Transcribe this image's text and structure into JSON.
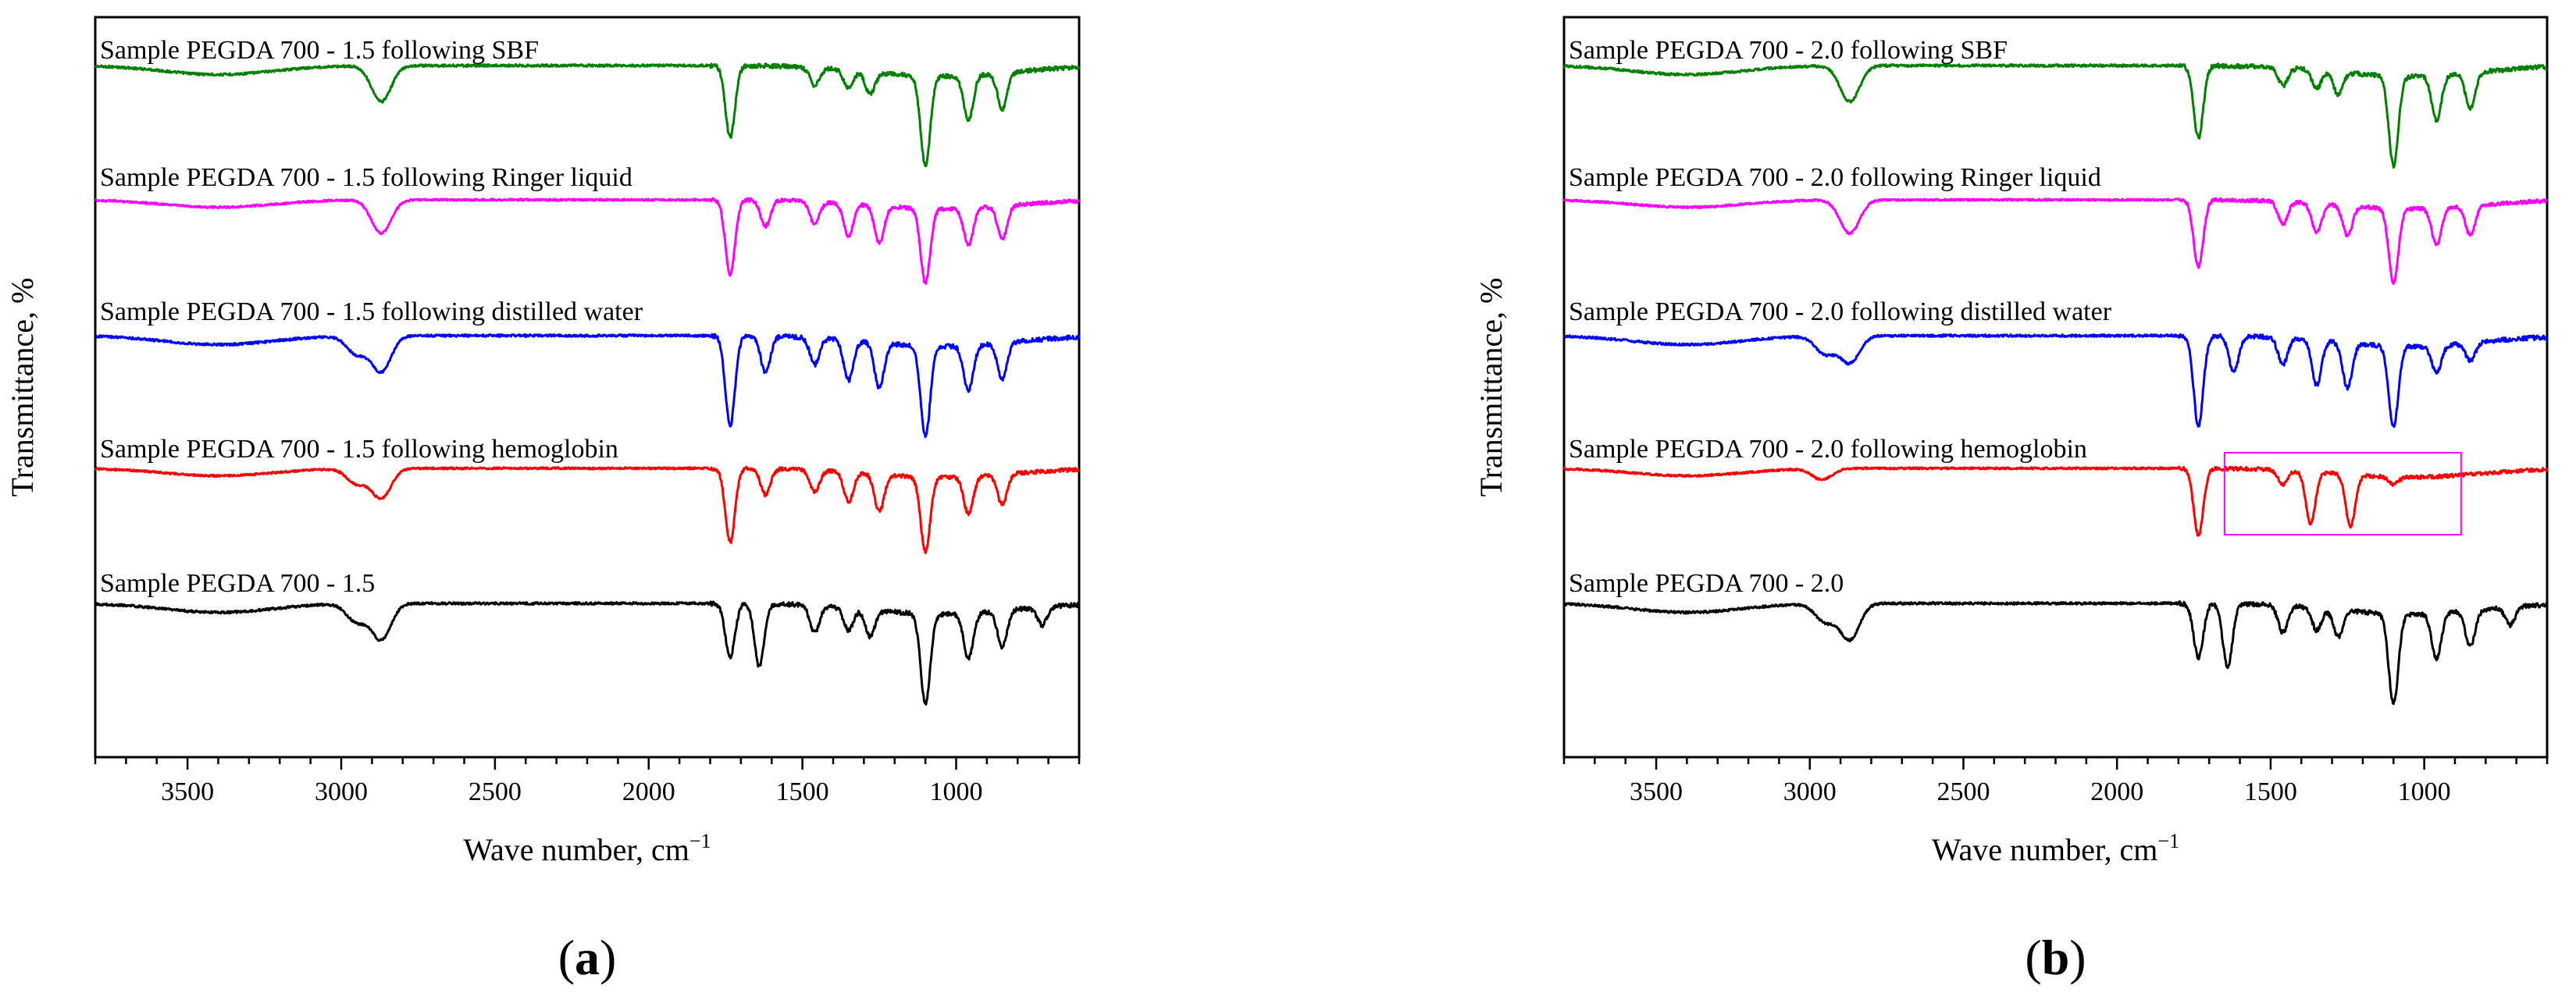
{
  "figure": {
    "x_axis_unit_base": "cm",
    "x_axis_unit_exp": "−1"
  },
  "chart_data": [
    {
      "type": "line",
      "panel": "a",
      "panel_label": {
        "open": "(",
        "letter": "a",
        "close": ")"
      },
      "xlabel": "Wave number, cm−1",
      "xlabel_text": "Wave number, ",
      "ylabel": "Transmittance, %",
      "xlim": [
        3800,
        600
      ],
      "x_reversed": true,
      "xticks": [
        3500,
        3000,
        2500,
        2000,
        1500,
        1000
      ],
      "yticks_shown": false,
      "grid": false,
      "legend": "inline labels above each curve",
      "series": [
        {
          "name": "Sample PEGDA 700 - 1.5 following SBF",
          "color": "#008000",
          "peaks": [
            [
              2870,
              0.4
            ],
            [
              1735,
              0.8
            ],
            [
              1460,
              0.2
            ],
            [
              1350,
              0.2
            ],
            [
              1280,
              0.25
            ],
            [
              1100,
              1.0
            ],
            [
              960,
              0.5
            ],
            [
              850,
              0.4
            ]
          ]
        },
        {
          "name": "Sample PEGDA 700 - 1.5 following Ringer liquid",
          "color": "#ff00ff",
          "peaks": [
            [
              2870,
              0.45
            ],
            [
              1735,
              1.0
            ],
            [
              1620,
              0.35
            ],
            [
              1460,
              0.3
            ],
            [
              1350,
              0.45
            ],
            [
              1250,
              0.5
            ],
            [
              1100,
              1.0
            ],
            [
              960,
              0.5
            ],
            [
              850,
              0.45
            ]
          ]
        },
        {
          "name": "Sample PEGDA 700 - 1.5 following distilled water",
          "color": "#0000ff",
          "peaks": [
            [
              2950,
              0.2
            ],
            [
              2870,
              0.4
            ],
            [
              1735,
              1.0
            ],
            [
              1620,
              0.4
            ],
            [
              1460,
              0.3
            ],
            [
              1350,
              0.45
            ],
            [
              1250,
              0.5
            ],
            [
              1100,
              1.0
            ],
            [
              960,
              0.5
            ],
            [
              850,
              0.4
            ]
          ]
        },
        {
          "name": "Sample PEGDA 700 - 1.5 following hemoglobin",
          "color": "#ff0000",
          "peaks": [
            [
              2950,
              0.2
            ],
            [
              2870,
              0.4
            ],
            [
              1735,
              1.0
            ],
            [
              1620,
              0.35
            ],
            [
              1460,
              0.3
            ],
            [
              1350,
              0.4
            ],
            [
              1250,
              0.5
            ],
            [
              1100,
              1.0
            ],
            [
              960,
              0.5
            ],
            [
              850,
              0.4
            ]
          ]
        },
        {
          "name": "Sample PEGDA 700 - 1.5",
          "color": "#000000",
          "peaks": [
            [
              2950,
              0.2
            ],
            [
              2870,
              0.4
            ],
            [
              1735,
              0.6
            ],
            [
              1640,
              0.7
            ],
            [
              1460,
              0.3
            ],
            [
              1350,
              0.25
            ],
            [
              1280,
              0.3
            ],
            [
              1100,
              1.0
            ],
            [
              960,
              0.5
            ],
            [
              850,
              0.4
            ],
            [
              720,
              0.2
            ]
          ]
        }
      ]
    },
    {
      "type": "line",
      "panel": "b",
      "panel_label": {
        "open": "(",
        "letter": "b",
        "close": ")"
      },
      "xlabel": "Wave number, cm−1",
      "xlabel_text": "Wave number, ",
      "ylabel": "Transmittance, %",
      "xlim": [
        3800,
        600
      ],
      "x_reversed": true,
      "xticks": [
        3500,
        3000,
        2500,
        2000,
        1500,
        1000
      ],
      "yticks_shown": false,
      "grid": false,
      "legend": "inline labels above each curve",
      "highlight_box": {
        "color": "#ff00ff",
        "x_range": [
          1650,
          880
        ],
        "series": "Sample PEGDA 700 - 2.0 following hemoglobin"
      },
      "series": [
        {
          "name": "Sample PEGDA 700 - 2.0 following SBF",
          "color": "#008000",
          "peaks": [
            [
              2870,
              0.4
            ],
            [
              1735,
              0.8
            ],
            [
              1460,
              0.2
            ],
            [
              1350,
              0.2
            ],
            [
              1280,
              0.25
            ],
            [
              1100,
              1.0
            ],
            [
              960,
              0.5
            ],
            [
              850,
              0.4
            ]
          ]
        },
        {
          "name": "Sample PEGDA 700 - 2.0 following Ringer liquid",
          "color": "#ff00ff",
          "peaks": [
            [
              2870,
              0.45
            ],
            [
              1735,
              0.9
            ],
            [
              1460,
              0.3
            ],
            [
              1350,
              0.4
            ],
            [
              1250,
              0.4
            ],
            [
              1100,
              1.0
            ],
            [
              960,
              0.5
            ],
            [
              850,
              0.4
            ]
          ]
        },
        {
          "name": "Sample PEGDA 700 - 2.0 following distilled water",
          "color": "#0000ff",
          "peaks": [
            [
              2950,
              0.2
            ],
            [
              2870,
              0.3
            ],
            [
              1735,
              1.0
            ],
            [
              1620,
              0.4
            ],
            [
              1460,
              0.3
            ],
            [
              1350,
              0.5
            ],
            [
              1250,
              0.5
            ],
            [
              1100,
              0.9
            ],
            [
              960,
              0.3
            ],
            [
              850,
              0.2
            ]
          ]
        },
        {
          "name": "Sample PEGDA 700 - 2.0 following hemoglobin",
          "color": "#ff0000",
          "peaks": [
            [
              2960,
              0.15
            ],
            [
              1735,
              0.9
            ],
            [
              1460,
              0.2
            ],
            [
              1370,
              0.7
            ],
            [
              1240,
              0.7
            ],
            [
              1100,
              0.1
            ]
          ]
        },
        {
          "name": "Sample PEGDA 700 - 2.0",
          "color": "#000000",
          "peaks": [
            [
              2950,
              0.2
            ],
            [
              2870,
              0.4
            ],
            [
              1735,
              0.6
            ],
            [
              1640,
              0.7
            ],
            [
              1460,
              0.3
            ],
            [
              1350,
              0.25
            ],
            [
              1280,
              0.3
            ],
            [
              1100,
              1.0
            ],
            [
              960,
              0.5
            ],
            [
              850,
              0.4
            ],
            [
              720,
              0.2
            ]
          ]
        }
      ]
    }
  ]
}
